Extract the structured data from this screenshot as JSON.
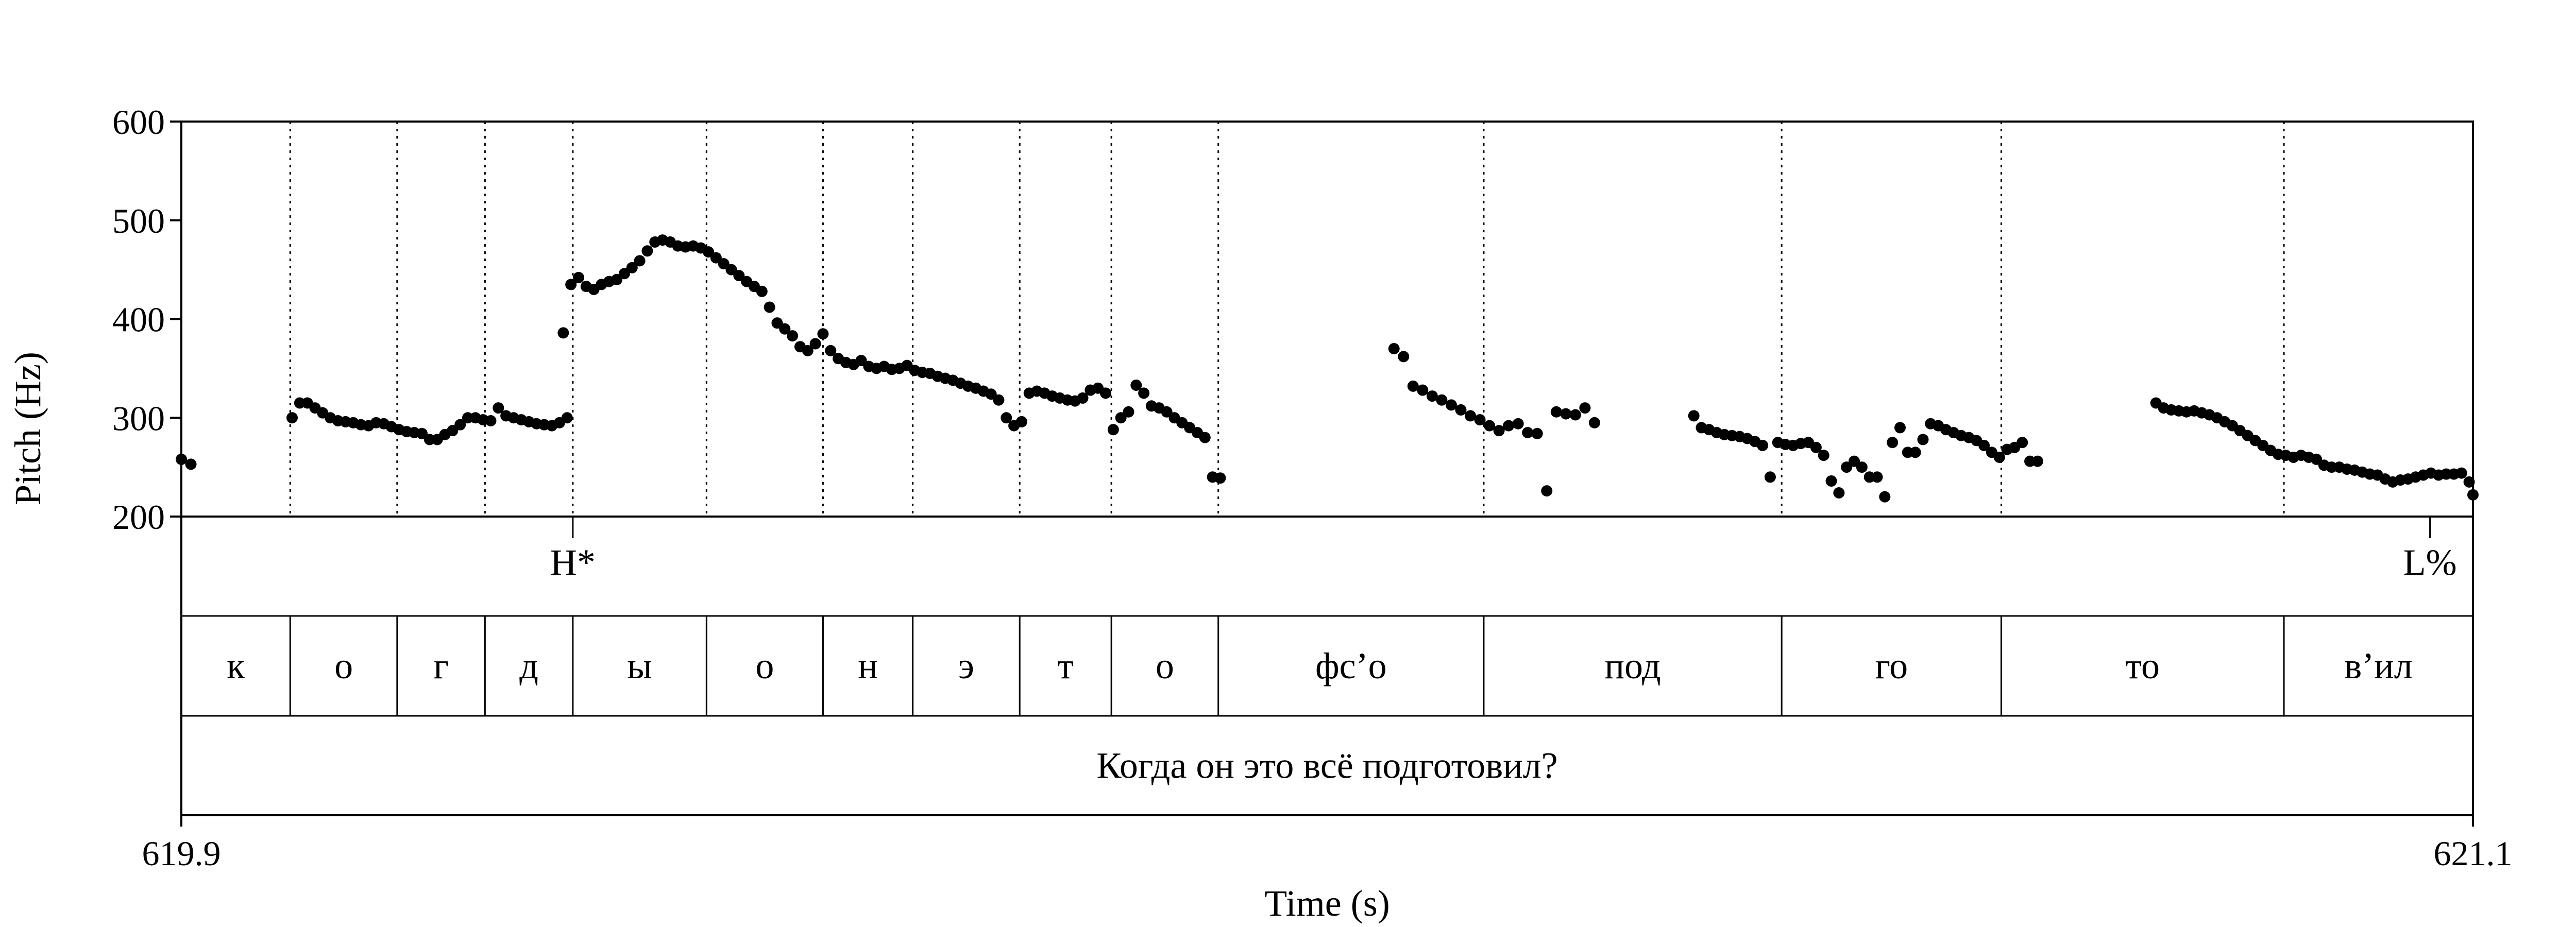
{
  "chart_data": {
    "type": "scatter",
    "xlabel": "Time (s)",
    "ylabel": "Pitch (Hz)",
    "xlim": [
      619.9,
      621.1
    ],
    "ylim": [
      200,
      600
    ],
    "x_tick_labels": [
      "619.9",
      "621.1"
    ],
    "y_ticks": [
      200,
      300,
      400,
      500,
      600
    ],
    "y_tick_labels": [
      "200",
      "300",
      "400",
      "500",
      "600"
    ],
    "grid": "vertical dotted lines at segment boundaries",
    "marker_color": "#000000",
    "tones": [
      {
        "label": "H*",
        "t": 620.105
      },
      {
        "label": "L%",
        "t": 621.0775
      }
    ],
    "segments": [
      {
        "label": "к",
        "start": 619.9,
        "end": 619.957
      },
      {
        "label": "о",
        "start": 619.957,
        "end": 620.013
      },
      {
        "label": "г",
        "start": 620.013,
        "end": 620.059
      },
      {
        "label": "д",
        "start": 620.059,
        "end": 620.105
      },
      {
        "label": "ы",
        "start": 620.105,
        "end": 620.175
      },
      {
        "label": "о",
        "start": 620.175,
        "end": 620.236
      },
      {
        "label": "н",
        "start": 620.236,
        "end": 620.283
      },
      {
        "label": "э",
        "start": 620.283,
        "end": 620.339
      },
      {
        "label": "т",
        "start": 620.339,
        "end": 620.387
      },
      {
        "label": "о",
        "start": 620.387,
        "end": 620.443
      },
      {
        "label": "фс’о",
        "start": 620.443,
        "end": 620.582
      },
      {
        "label": "под",
        "start": 620.582,
        "end": 620.738
      },
      {
        "label": "го",
        "start": 620.738,
        "end": 620.853
      },
      {
        "label": "то",
        "start": 620.853,
        "end": 621.001
      },
      {
        "label": "в’ил",
        "start": 621.001,
        "end": 621.1
      }
    ],
    "sentence": "Когда он это всё подготовил?",
    "pitch_segments": [
      {
        "t": [
          619.9,
          619.905
        ],
        "f": [
          258,
          253
        ]
      },
      {
        "t": [
          619.958,
          619.962,
          619.966,
          619.97,
          619.974,
          619.978,
          619.982,
          619.986,
          619.99,
          619.994,
          619.998,
          620.002,
          620.006,
          620.01,
          620.014,
          620.018,
          620.022,
          620.026,
          620.03,
          620.034,
          620.038,
          620.042,
          620.046,
          620.05,
          620.054,
          620.058,
          620.062,
          620.066,
          620.07,
          620.074,
          620.078,
          620.082,
          620.086,
          620.09,
          620.094,
          620.098,
          620.102
        ],
        "f": [
          300,
          315,
          315,
          310,
          305,
          300,
          297,
          296,
          295,
          293,
          292,
          295,
          294,
          291,
          288,
          286,
          285,
          284,
          278,
          278,
          283,
          287,
          293,
          300,
          300,
          298,
          297,
          310,
          302,
          300,
          298,
          296,
          294,
          293,
          292,
          295,
          300
        ]
      },
      {
        "t": [
          620.1,
          620.104,
          620.108,
          620.112,
          620.116,
          620.12,
          620.124,
          620.128,
          620.132,
          620.136,
          620.14,
          620.144,
          620.148,
          620.152,
          620.156,
          620.16,
          620.164,
          620.168,
          620.172,
          620.176,
          620.18,
          620.184,
          620.188,
          620.192,
          620.196,
          620.2,
          620.204,
          620.208,
          620.212,
          620.216,
          620.22,
          620.224,
          620.228,
          620.232,
          620.236,
          620.24,
          620.244,
          620.248,
          620.252,
          620.256,
          620.26,
          620.264,
          620.268,
          620.272,
          620.276,
          620.28,
          620.284,
          620.288,
          620.292,
          620.296,
          620.3,
          620.304,
          620.308,
          620.312,
          620.316,
          620.32,
          620.324,
          620.328,
          620.332,
          620.336,
          620.34,
          620.344,
          620.348,
          620.352,
          620.356,
          620.36,
          620.364,
          620.368,
          620.372,
          620.376,
          620.38,
          620.384,
          620.388,
          620.392,
          620.396,
          620.4,
          620.404,
          620.408,
          620.412,
          620.416,
          620.42,
          620.424,
          620.428,
          620.432,
          620.436
        ],
        "f": [
          386,
          435,
          442,
          433,
          430,
          435,
          438,
          440,
          446,
          452,
          459,
          469,
          478,
          480,
          478,
          474,
          473,
          474,
          472,
          468,
          462,
          456,
          450,
          444,
          438,
          433,
          428,
          412,
          396,
          390,
          383,
          372,
          368,
          375,
          385,
          368,
          360,
          356,
          354,
          358,
          352,
          350,
          352,
          349,
          350,
          353,
          348,
          346,
          345,
          342,
          340,
          338,
          335,
          332,
          330,
          327,
          324,
          318,
          300,
          292,
          296,
          325,
          327,
          325,
          322,
          320,
          318,
          317,
          320,
          328,
          330,
          325,
          288,
          300,
          306,
          333,
          325,
          312,
          310,
          306,
          300,
          295,
          290,
          285,
          280
        ]
      },
      {
        "t": [
          620.44,
          620.444
        ],
        "f": [
          240,
          239
        ]
      },
      {
        "t": [
          620.535,
          620.54,
          620.545,
          620.55,
          620.555,
          620.56,
          620.565,
          620.57,
          620.575,
          620.58,
          620.585,
          620.59,
          620.595,
          620.6,
          620.605,
          620.61,
          620.615,
          620.62
        ],
        "f": [
          370,
          362,
          332,
          328,
          322,
          318,
          313,
          308,
          302,
          298,
          292,
          287,
          292,
          294,
          285,
          284,
          226,
          306
        ]
      },
      {
        "t": [
          620.625,
          620.63,
          620.635,
          620.64
        ],
        "f": [
          304,
          303,
          310,
          295
        ]
      },
      {
        "t": [
          620.692,
          620.696,
          620.7,
          620.704,
          620.708,
          620.712,
          620.716,
          620.72,
          620.724,
          620.728,
          620.732,
          620.736,
          620.74,
          620.744,
          620.748,
          620.752,
          620.756,
          620.76,
          620.764,
          620.768,
          620.772,
          620.776,
          620.78,
          620.784,
          620.788,
          620.792,
          620.796,
          620.8,
          620.804,
          620.808,
          620.812,
          620.816,
          620.82,
          620.824,
          620.828,
          620.832,
          620.836,
          620.84,
          620.844,
          620.848
        ],
        "f": [
          302,
          290,
          288,
          285,
          283,
          282,
          281,
          279,
          276,
          272,
          240,
          275,
          273,
          272,
          274,
          275,
          270,
          262,
          236,
          224,
          250,
          256,
          250,
          240,
          240,
          220,
          275,
          290,
          265,
          265,
          278,
          294,
          292,
          288,
          285,
          282,
          280,
          277,
          272,
          265
        ]
      },
      {
        "t": [
          620.852,
          620.856,
          620.86,
          620.864,
          620.868,
          620.872
        ],
        "f": [
          260,
          268,
          270,
          275,
          256,
          256
        ]
      },
      {
        "t": [
          620.934,
          620.938,
          620.942,
          620.946,
          620.95,
          620.954,
          620.958,
          620.962,
          620.966,
          620.97,
          620.974,
          620.978,
          620.982,
          620.986,
          620.99,
          620.994,
          620.998,
          621.002,
          621.006,
          621.01,
          621.014,
          621.018,
          621.022,
          621.026,
          621.03,
          621.034,
          621.038,
          621.042,
          621.046,
          621.05,
          621.054,
          621.058,
          621.062,
          621.066,
          621.07,
          621.074,
          621.078,
          621.082,
          621.086,
          621.09,
          621.094,
          621.098,
          621.1
        ],
        "f": [
          315,
          310,
          308,
          307,
          306,
          307,
          305,
          303,
          300,
          296,
          292,
          287,
          282,
          277,
          272,
          267,
          263,
          262,
          260,
          262,
          260,
          258,
          252,
          250,
          250,
          248,
          247,
          245,
          243,
          242,
          238,
          235,
          237,
          238,
          240,
          242,
          244,
          242,
          243,
          243,
          244,
          235,
          222
        ]
      }
    ]
  }
}
